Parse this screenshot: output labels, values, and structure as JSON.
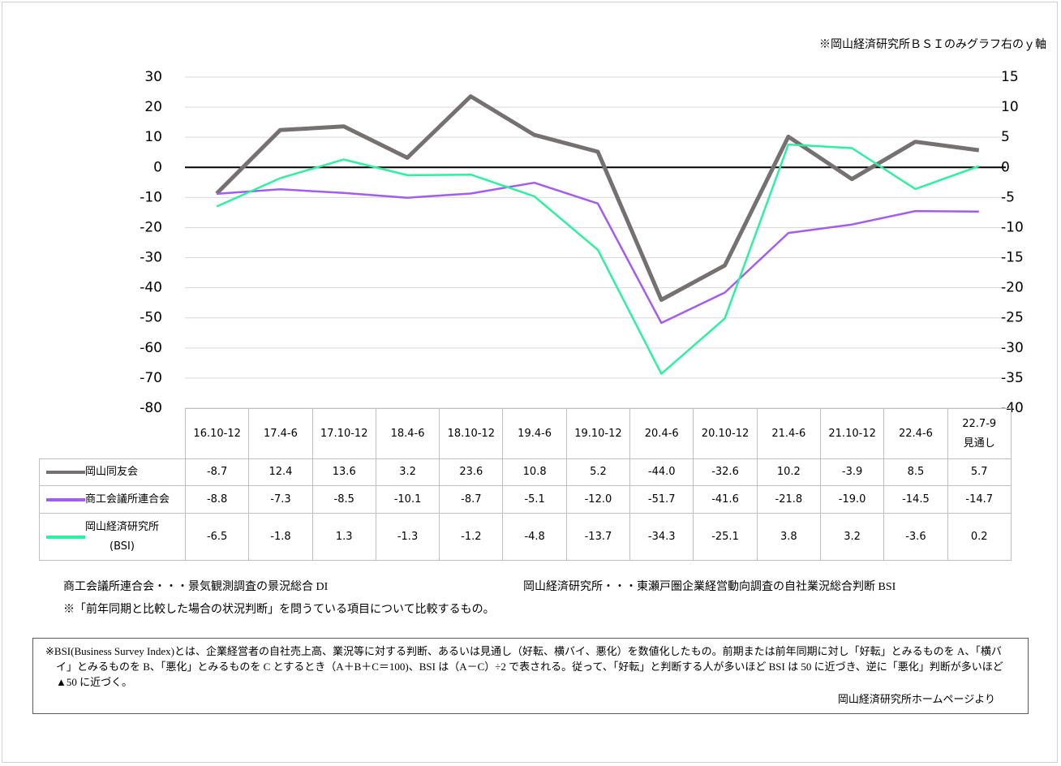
{
  "chart_data": {
    "type": "line",
    "note": "※岡山経済研究所ＢＳＩのみグラフ右のｙ軸",
    "categories": [
      "16.10-12",
      "17.4-6",
      "17.10-12",
      "18.4-6",
      "18.10-12",
      "19.4-6",
      "19.10-12",
      "20.4-6",
      "20.10-12",
      "21.4-6",
      "21.10-12",
      "22.4-6",
      "22.7-9\n見通し"
    ],
    "series": [
      {
        "name": "岡山同友会",
        "color": "#767171",
        "axis": "y",
        "values": [
          -8.7,
          12.4,
          13.6,
          3.2,
          23.6,
          10.8,
          5.2,
          -44.0,
          -32.6,
          10.2,
          -3.9,
          8.5,
          5.7
        ],
        "value_labels": [
          "-8.7",
          "12.4",
          "13.6",
          "3.2",
          "23.6",
          "10.8",
          "5.2",
          "-44.0",
          "-32.6",
          "10.2",
          "-3.9",
          "8.5",
          "5.7"
        ]
      },
      {
        "name": "商工会議所連合会",
        "color": "#a35cf0",
        "axis": "y",
        "values": [
          -8.8,
          -7.3,
          -8.5,
          -10.1,
          -8.7,
          -5.1,
          -12.0,
          -51.7,
          -41.6,
          -21.8,
          -19.0,
          -14.5,
          -14.7
        ],
        "value_labels": [
          "-8.8",
          "-7.3",
          "-8.5",
          "-10.1",
          "-8.7",
          "-5.1",
          "-12.0",
          "-51.7",
          "-41.6",
          "-21.8",
          "-19.0",
          "-14.5",
          "-14.7"
        ]
      },
      {
        "name": "岡山経済研究所\n(BSI)",
        "color": "#2ef0a0",
        "axis": "y2",
        "values": [
          -6.5,
          -1.8,
          1.3,
          -1.3,
          -1.2,
          -4.8,
          -13.7,
          -34.3,
          -25.1,
          3.8,
          3.2,
          -3.6,
          0.2
        ],
        "value_labels": [
          "-6.5",
          "-1.8",
          "1.3",
          "-1.3",
          "-1.2",
          "-4.8",
          "-13.7",
          "-34.3",
          "-25.1",
          "3.8",
          "3.2",
          "-3.6",
          "0.2"
        ]
      }
    ],
    "ylim": [
      -80,
      30
    ],
    "yticks": [
      30,
      20,
      10,
      0,
      -10,
      -20,
      -30,
      -40,
      -50,
      -60,
      -70,
      -80
    ],
    "y2lim": [
      -40,
      15
    ],
    "y2ticks": [
      15,
      10,
      5,
      0,
      -5,
      -10,
      -15,
      -20,
      -25,
      -30,
      -35,
      -40
    ],
    "grid": true
  },
  "footnotes": [
    "商工会議所連合会・・・景気観測調査の景況総合 DI",
    "岡山経済研究所・・・東瀬戸圏企業経営動向調査の自社業況総合判断 BSI",
    "※「前年同期と比較した場合の状況判断」を問うている項目について比較するもの。"
  ],
  "box": {
    "text": "※BSI(Business Survey Index)とは、企業経営者の自社売上高、業況等に対する判断、あるいは見通し（好転、横バイ、悪化）を数値化したもの。前期または前年同期に対し「好転」とみるものを A、「横バイ」とみるものを B、「悪化」とみるものを C とするとき（A＋B＋C＝100)、BSI は（A－C）÷2 で表される。従って、「好転」と判断する人が多いほど BSI は 50 に近づき、逆に「悪化」判断が多いほど▲50 に近づく。",
    "source": "岡山経済研究所ホームページより"
  }
}
